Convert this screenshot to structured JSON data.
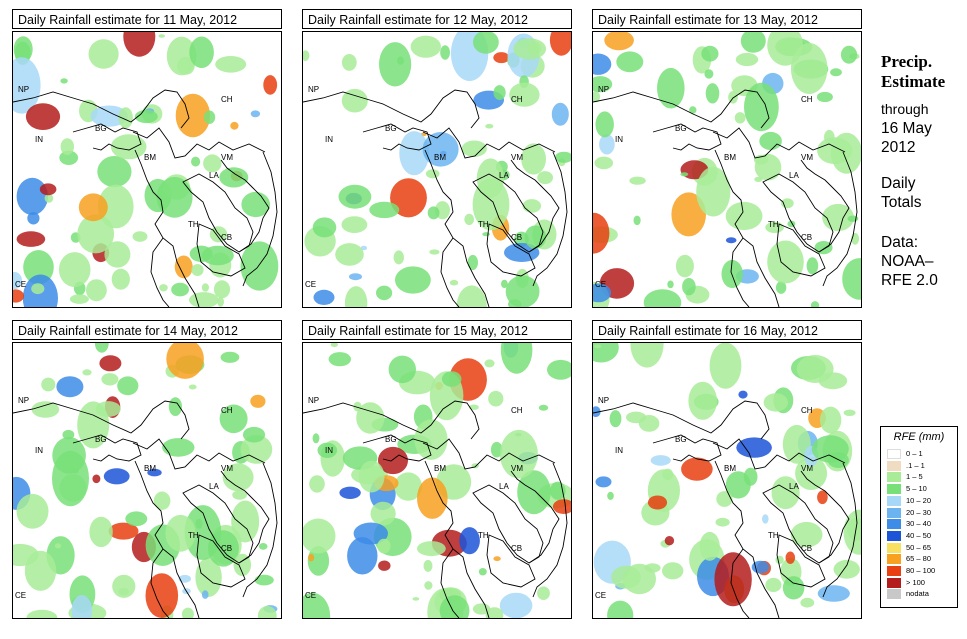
{
  "panels": [
    {
      "title": "Daily Rainfall estimate for  11 May, 2012"
    },
    {
      "title": "Daily Rainfall estimate for  12 May, 2012"
    },
    {
      "title": "Daily Rainfall estimate for  13 May, 2012"
    },
    {
      "title": "Daily Rainfall estimate for  14 May, 2012"
    },
    {
      "title": "Daily Rainfall estimate for  15 May, 2012"
    },
    {
      "title": "Daily Rainfall estimate for  16 May, 2012"
    }
  ],
  "country_labels": [
    "NP",
    "CH",
    "IN",
    "BG",
    "BM",
    "VM",
    "LA",
    "TH",
    "CB",
    "CE"
  ],
  "side": {
    "title_line1": "Precip.",
    "title_line2": "Estimate",
    "through": "through",
    "date_line1": "16 May",
    "date_line2": "2012",
    "daily_line1": "Daily",
    "daily_line2": "Totals",
    "data_line1": "Data:",
    "data_line2": "NOAA–",
    "data_line3": "RFE 2.0"
  },
  "legend": {
    "title": "RFE (mm)",
    "entries": [
      {
        "label": "0 – 1",
        "color": "#ffffff"
      },
      {
        "label": ".1 – 1",
        "color": "#f0dcc0"
      },
      {
        "label": "1 – 5",
        "color": "#a8ec98"
      },
      {
        "label": "5 – 10",
        "color": "#78e078"
      },
      {
        "label": "10 – 20",
        "color": "#a8d8f8"
      },
      {
        "label": "20 – 30",
        "color": "#6cb4f0"
      },
      {
        "label": "30 – 40",
        "color": "#3c8ce8"
      },
      {
        "label": "40 – 50",
        "color": "#1c54d8"
      },
      {
        "label": "50 – 65",
        "color": "#f8e060"
      },
      {
        "label": "65 – 80",
        "color": "#f8a020"
      },
      {
        "label": "80 – 100",
        "color": "#e84010"
      },
      {
        "label": "> 100",
        "color": "#b41c1c"
      },
      {
        "label": "nodata",
        "color": "#c8c8c8"
      }
    ]
  }
}
